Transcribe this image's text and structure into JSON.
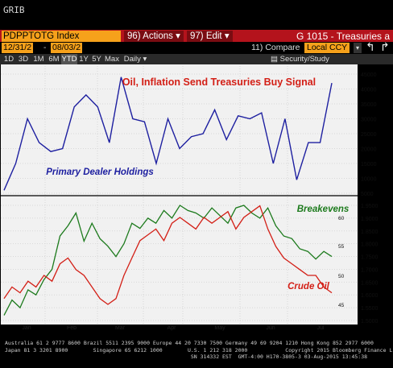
{
  "app": {
    "screen_code": "GRIB"
  },
  "toolbar": {
    "ticker": "PDPPTOTG Index",
    "actions_label": "96) Actions ▾",
    "edit_label": "97) Edit ▾",
    "title": "G 1015 - Treasuries a",
    "start_date": "12/31/2",
    "end_date": "08/03/2",
    "compare_label": "11) Compare",
    "currency": "Local CCY",
    "currency_arrow": "▾",
    "nav_back": "↰",
    "nav_forward": "↱"
  },
  "timeframes": [
    {
      "label": "1D"
    },
    {
      "label": "3D"
    },
    {
      "label": "1M"
    },
    {
      "label": "6M"
    },
    {
      "label": "YTD"
    },
    {
      "label": "1Y"
    },
    {
      "label": "5Y"
    },
    {
      "label": "Max"
    },
    {
      "label": "Daily ▾"
    }
  ],
  "security_study": "Security/Study",
  "chart_data": [
    {
      "type": "line",
      "title": "Oil, Inflation Send Treasuries Buy Signal",
      "series": [
        {
          "name": "Primary Dealer Holdings",
          "color": "#1d1fa0",
          "x": [
            0,
            1,
            2,
            3,
            4,
            5,
            6,
            7,
            8,
            9,
            10,
            11,
            12,
            13,
            14,
            15,
            16,
            17,
            18,
            19,
            20,
            21,
            22,
            23,
            24,
            25,
            26,
            27,
            28
          ],
          "values": [
            6000,
            15000,
            30000,
            22000,
            19000,
            20000,
            34000,
            38000,
            34000,
            22000,
            44000,
            30000,
            29000,
            15000,
            30000,
            20000,
            24000,
            25000,
            33000,
            23000,
            31000,
            30000,
            32000,
            15000,
            30000,
            9500,
            22000,
            22000,
            42000
          ]
        }
      ],
      "ylim": [
        5000,
        45000
      ],
      "y_ticks": [
        "45000",
        "40000",
        "35000",
        "30000",
        "25000",
        "20000",
        "15000",
        "10000",
        "5000"
      ]
    },
    {
      "type": "line",
      "series": [
        {
          "name": "Breakevens",
          "color": "#1c7a1c",
          "axis": "right",
          "values": [
            1.52,
            1.58,
            1.55,
            1.62,
            1.6,
            1.66,
            1.7,
            1.83,
            1.87,
            1.92,
            1.81,
            1.88,
            1.82,
            1.79,
            1.75,
            1.8,
            1.88,
            1.86,
            1.9,
            1.88,
            1.93,
            1.9,
            1.95,
            1.93,
            1.92,
            1.9,
            1.94,
            1.91,
            1.88,
            1.94,
            1.95,
            1.92,
            1.9,
            1.94,
            1.87,
            1.83,
            1.82,
            1.78,
            1.77,
            1.74,
            1.77,
            1.75
          ]
        },
        {
          "name": "Crude Oil",
          "color": "#d31f16",
          "axis": "inner",
          "values": [
            46,
            48,
            47,
            49,
            48,
            50,
            49,
            52,
            53,
            51,
            50,
            48,
            46,
            45,
            46,
            50,
            53,
            56,
            57,
            58,
            56,
            59,
            60,
            59,
            58,
            60,
            59,
            60,
            61,
            58,
            60,
            61,
            62,
            58,
            55,
            53,
            52,
            51,
            50,
            50,
            48,
            47
          ]
        }
      ],
      "x_ticks": [
        "Jan",
        "Feb",
        "Mar",
        "Apr",
        "May",
        "Jun",
        "Jul"
      ],
      "x_year": "2015",
      "ylim_right": [
        1.5,
        1.95
      ],
      "y_ticks_right": [
        "1.9500",
        "1.9000",
        "1.8500",
        "1.8000",
        "1.7500",
        "1.7000",
        "1.6500",
        "1.6000",
        "1.5500",
        "1.5000"
      ],
      "y_ticks_inner": [
        "60",
        "55",
        "50",
        "45"
      ]
    }
  ],
  "footer": {
    "line1": "Australia 61 2 9777 8600 Brazil 5511 2395 9000 Europe 44 20 7330 7500 Germany 49 69 9204 1210 Hong Kong 852 2977 6000",
    "line2": "Japan 81 3 3201 8900        Singapore 65 6212 1000        U.S. 1 212 318 2000            Copyright 2015 Bloomberg Finance L.P.",
    "line3": "                                                           SN 314332 EST  GMT-4:00 H170-3805-3 03-Aug-2015 13:45:38"
  }
}
